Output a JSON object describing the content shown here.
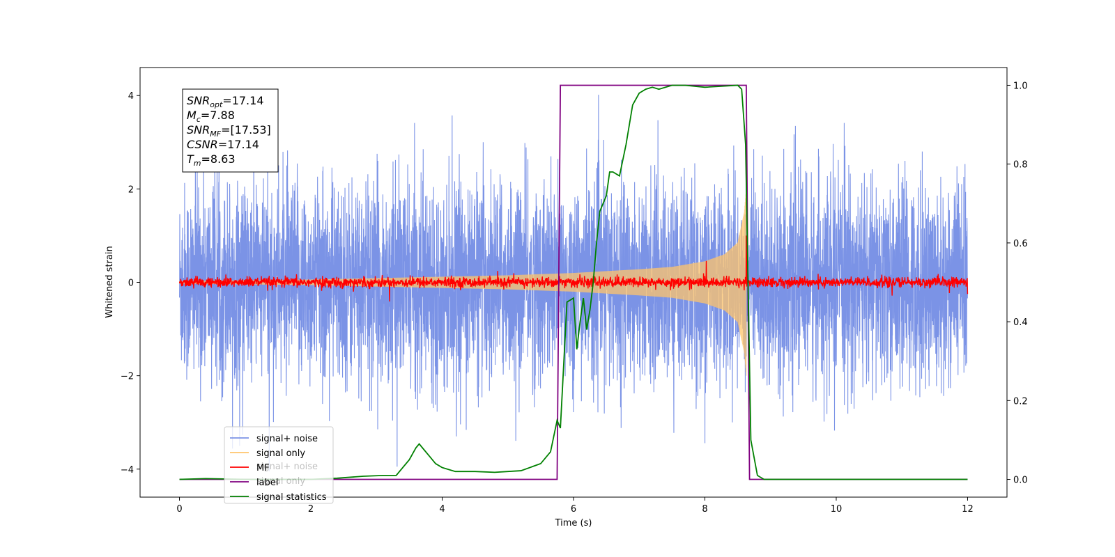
{
  "chart_data": {
    "type": "line",
    "xlabel": "Time (s)",
    "ylabel": "Whitened strain",
    "xlim": [
      -0.6,
      12.6
    ],
    "ylim": [
      -4.6,
      4.6
    ],
    "y2lim": [
      -0.045,
      1.045
    ],
    "x_ticks": [
      0,
      2,
      4,
      6,
      8,
      10,
      12
    ],
    "x_tick_labels": [
      "0",
      "2",
      "4",
      "6",
      "8",
      "10",
      "12"
    ],
    "y_ticks": [
      -4,
      -2,
      0,
      2,
      4
    ],
    "y_tick_labels": [
      "−4",
      "−2",
      "0",
      "2",
      "4"
    ],
    "y2_ticks": [
      0.0,
      0.2,
      0.4,
      0.6,
      0.8,
      1.0
    ],
    "y2_tick_labels": [
      "0.0",
      "0.2",
      "0.4",
      "0.6",
      "0.8",
      "1.0"
    ],
    "grid": false,
    "legend_position": "lower-left",
    "legend_ghost_entries": [
      "signal+ noise",
      "signal only"
    ],
    "annotation": {
      "lines": [
        {
          "sym": "SNR",
          "sub": "opt",
          "rest": "=17.14"
        },
        {
          "sym": "M",
          "sub": "c",
          "rest": "=7.88"
        },
        {
          "sym": "SNR",
          "sub": "MF",
          "rest": "=[17.53]"
        },
        {
          "sym": "CSNR",
          "sub": "",
          "rest": "=17.14"
        },
        {
          "sym": "T",
          "sub": "m",
          "rest": "=8.63"
        }
      ]
    },
    "series": [
      {
        "name": "signal+ noise",
        "axis": "left",
        "color": "#7b93e6",
        "kind": "noise",
        "x_range": [
          0,
          12
        ],
        "amplitude_typical": 2.2,
        "amplitude_peak": 4.0
      },
      {
        "name": "signal only",
        "axis": "left",
        "color": "#ffc46b",
        "kind": "chirp",
        "x_range": [
          0,
          8.63
        ],
        "envelope": {
          "x": [
            0,
            2,
            4,
            5,
            6,
            7,
            7.5,
            8,
            8.3,
            8.5,
            8.6,
            8.63
          ],
          "y": [
            0.03,
            0.06,
            0.12,
            0.15,
            0.2,
            0.28,
            0.33,
            0.45,
            0.6,
            0.85,
            1.5,
            2.0
          ]
        }
      },
      {
        "name": "MF",
        "axis": "left",
        "color": "#ff0000",
        "kind": "noise",
        "x_range": [
          0,
          12
        ],
        "amplitude_typical": 0.08,
        "amplitude_peak": 0.2,
        "peak": {
          "x": 8.63,
          "y": 1.0
        }
      },
      {
        "name": "label",
        "axis": "right",
        "color": "#800080",
        "x": [
          0,
          5.75,
          5.8,
          8.63,
          8.68,
          12
        ],
        "y": [
          0,
          0,
          1,
          1,
          0,
          0
        ]
      },
      {
        "name": "signal statistics",
        "axis": "right",
        "color": "#008000",
        "x": [
          0,
          0.4,
          1.0,
          2.0,
          2.4,
          2.8,
          3.1,
          3.3,
          3.5,
          3.6,
          3.65,
          3.7,
          3.8,
          3.9,
          4.0,
          4.2,
          4.5,
          4.8,
          5.0,
          5.2,
          5.5,
          5.6,
          5.65,
          5.75,
          5.8,
          5.9,
          6.0,
          6.05,
          6.1,
          6.15,
          6.2,
          6.25,
          6.3,
          6.35,
          6.4,
          6.5,
          6.55,
          6.6,
          6.7,
          6.8,
          6.9,
          7.0,
          7.1,
          7.2,
          7.3,
          7.5,
          7.7,
          8.0,
          8.5,
          8.56,
          8.62,
          8.7,
          8.8,
          8.9,
          12
        ],
        "y": [
          0.0,
          0.002,
          0.0,
          0.0,
          0.003,
          0.008,
          0.01,
          0.01,
          0.05,
          0.08,
          0.09,
          0.08,
          0.06,
          0.04,
          0.03,
          0.02,
          0.02,
          0.018,
          0.02,
          0.022,
          0.04,
          0.06,
          0.07,
          0.15,
          0.13,
          0.45,
          0.46,
          0.33,
          0.4,
          0.46,
          0.38,
          0.43,
          0.5,
          0.6,
          0.68,
          0.72,
          0.78,
          0.78,
          0.77,
          0.85,
          0.95,
          0.98,
          0.99,
          0.995,
          0.99,
          1.0,
          1.0,
          0.995,
          1.0,
          0.99,
          0.85,
          0.1,
          0.01,
          0.0,
          0.0
        ]
      }
    ]
  }
}
